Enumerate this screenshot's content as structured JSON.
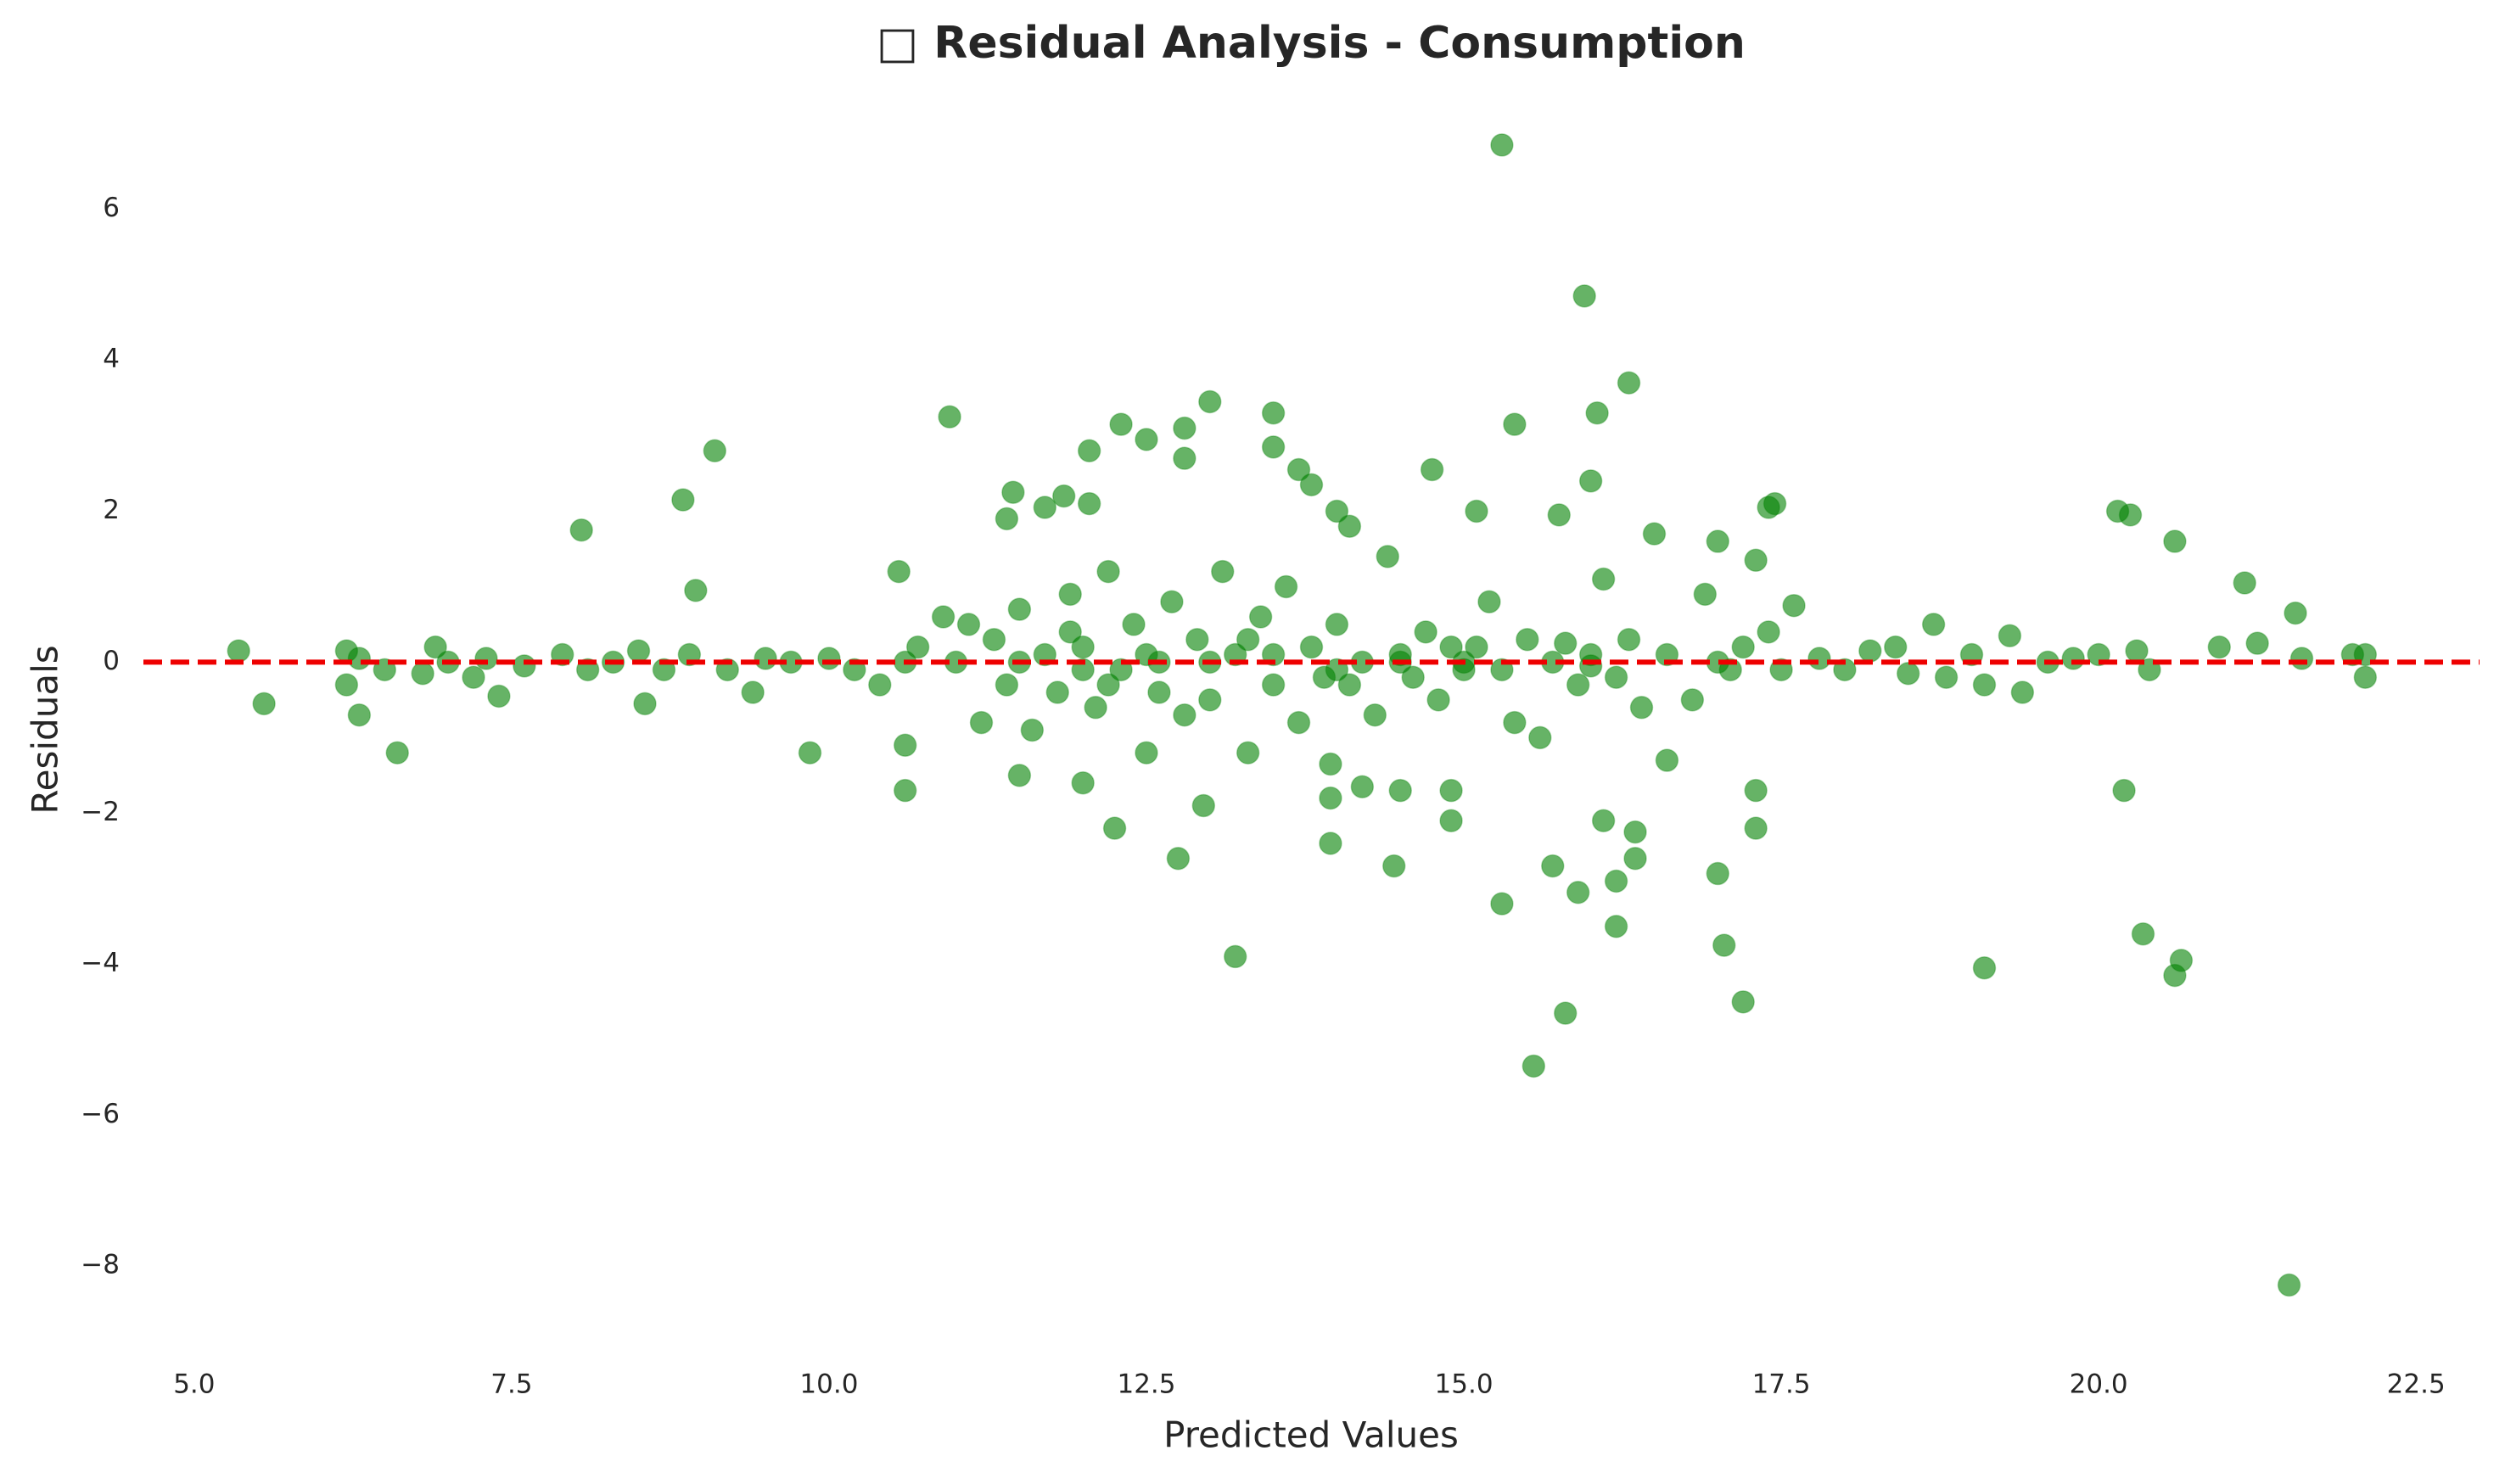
{
  "chart_data": {
    "type": "scatter",
    "title": "□ Residual Analysis - Consumption",
    "x_label": "Predicted Values",
    "y_label": "Residuals",
    "color": "#008000",
    "x": [
      5.35,
      5.55,
      6.2,
      6.2,
      6.3,
      6.6,
      6.9,
      7.4,
      8.05,
      8.55,
      8.85,
      8.95,
      9.1,
      9.4,
      9.85,
      10.6,
      10.6,
      10.55,
      10.95,
      11.4,
      11.45,
      11.5,
      11.7,
      11.85,
      12.0,
      12.05,
      12.05,
      12.25,
      12.3,
      12.5,
      12.75,
      12.8,
      12.8,
      12.95,
      13.0,
      13.2,
      13.5,
      13.5,
      13.7,
      13.8,
      13.95,
      13.95,
      13.95,
      14.0,
      14.1,
      14.2,
      14.45,
      14.5,
      14.75,
      14.9,
      14.9,
      15.1,
      15.3,
      15.3,
      15.4,
      15.55,
      15.7,
      15.8,
      15.75,
      15.9,
      15.95,
      16.0,
      16.05,
      16.1,
      16.2,
      16.2,
      16.3,
      16.35,
      16.35,
      16.6,
      17.0,
      17.05,
      17.2,
      17.3,
      17.3,
      17.4,
      17.45,
      19.1,
      20.15,
      20.25,
      20.2,
      20.35,
      20.6,
      20.6,
      20.65,
      20.95,
      21.15,
      21.25,
      21.5,
      21.55,
      21.6,
      22.0,
      22.1,
      22.1,
      6.3,
      6.5,
      6.8,
      7.0,
      7.2,
      7.3,
      7.6,
      7.9,
      8.1,
      8.3,
      8.5,
      8.7,
      8.9,
      9.2,
      9.5,
      9.7,
      10.0,
      10.2,
      10.4,
      10.7,
      10.9,
      11.1,
      11.2,
      11.3,
      11.4,
      11.5,
      11.6,
      11.7,
      11.8,
      11.9,
      12.0,
      12.1,
      12.2,
      12.3,
      12.4,
      12.5,
      12.6,
      12.7,
      12.8,
      12.9,
      13.0,
      13.1,
      13.2,
      13.3,
      13.4,
      13.5,
      13.6,
      13.7,
      13.8,
      13.9,
      14.0,
      14.1,
      14.2,
      14.3,
      14.4,
      14.5,
      14.6,
      14.7,
      14.8,
      14.9,
      15.0,
      15.1,
      15.2,
      15.3,
      15.4,
      15.5,
      15.6,
      15.7,
      15.8,
      15.9,
      16.0,
      16.1,
      16.2,
      16.3,
      16.4,
      16.5,
      16.6,
      16.8,
      16.9,
      17.0,
      17.1,
      17.2,
      17.3,
      17.4,
      17.5,
      17.6,
      17.8,
      18.0,
      18.2,
      18.4,
      18.5,
      18.7,
      18.8,
      19.0,
      19.1,
      19.3,
      19.4,
      19.6,
      19.8,
      20.0,
      20.3,
      20.4,
      10.6,
      11.0,
      11.5,
      12.0,
      12.5,
      13.0,
      13.5,
      14.0,
      14.5,
      15.0,
      16.0,
      17.0,
      12.2,
      11.9,
      12.6,
      13.3
    ],
    "values": [
      0.15,
      -0.55,
      -0.3,
      0.15,
      -0.7,
      -1.2,
      0.2,
      -0.45,
      1.75,
      -0.55,
      2.15,
      0.95,
      2.8,
      -0.4,
      -1.2,
      -1.7,
      -1.1,
      1.2,
      3.25,
      1.9,
      2.25,
      -1.5,
      2.05,
      2.2,
      -1.6,
      2.8,
      2.1,
      -2.2,
      3.15,
      2.95,
      -2.6,
      3.1,
      2.7,
      -1.9,
      3.45,
      -3.9,
      3.3,
      2.85,
      2.55,
      2.35,
      -1.35,
      -1.8,
      -2.4,
      2.0,
      1.8,
      -1.65,
      -2.7,
      -1.7,
      2.55,
      -2.1,
      -1.7,
      2.0,
      6.85,
      -3.2,
      3.15,
      -5.35,
      -2.7,
      -4.65,
      1.95,
      -3.05,
      4.85,
      2.4,
      3.3,
      -2.1,
      -2.9,
      -3.5,
      3.7,
      -2.25,
      -2.6,
      -1.3,
      -2.8,
      -3.75,
      -4.5,
      -2.2,
      -1.7,
      2.05,
      2.1,
      -4.05,
      2.0,
      1.95,
      -1.7,
      -3.6,
      -4.15,
      1.6,
      -3.95,
      0.2,
      1.05,
      0.25,
      -8.25,
      0.65,
      0.05,
      0.1,
      -0.2,
      0.1,
      0.05,
      -0.1,
      -0.15,
      0.0,
      -0.2,
      0.05,
      -0.05,
      0.1,
      -0.1,
      0.0,
      0.15,
      -0.1,
      0.1,
      -0.1,
      0.05,
      0.0,
      0.05,
      -0.1,
      -0.3,
      0.2,
      0.6,
      0.5,
      -0.8,
      0.3,
      -0.3,
      0.7,
      -0.9,
      0.1,
      -0.4,
      0.9,
      0.2,
      -0.6,
      1.2,
      -0.1,
      0.5,
      -1.2,
      0.0,
      0.8,
      -0.7,
      0.3,
      -0.5,
      1.2,
      0.1,
      -1.2,
      0.6,
      -0.3,
      1.0,
      -0.8,
      0.2,
      -0.2,
      0.5,
      -0.3,
      0.0,
      -0.7,
      1.4,
      0.1,
      -0.2,
      0.4,
      -0.5,
      0.2,
      -0.1,
      0.2,
      0.8,
      -0.1,
      -0.8,
      0.3,
      -1.0,
      0.0,
      0.25,
      -0.3,
      0.1,
      1.1,
      -0.2,
      0.3,
      -0.6,
      1.7,
      0.1,
      -0.5,
      0.9,
      1.6,
      -0.1,
      0.2,
      1.35,
      0.4,
      -0.1,
      0.75,
      0.05,
      -0.1,
      0.15,
      0.2,
      -0.15,
      0.5,
      -0.2,
      0.1,
      -0.3,
      0.35,
      -0.4,
      0.0,
      0.05,
      0.1,
      0.15,
      -0.1,
      0.0,
      0.0,
      0.0,
      -0.1,
      0.1,
      0.0,
      0.1,
      -0.1,
      0.0,
      0.0,
      -0.05,
      0.0,
      -0.3,
      0.4,
      -0.4,
      0.3
    ],
    "xlim": [
      4.6,
      23.0
    ],
    "ylim": [
      -9.2,
      7.4
    ],
    "xticks": [
      {
        "value": 5,
        "label": "5.0"
      },
      7.5,
      {
        "value": 10,
        "label": "10.0"
      },
      12.5,
      {
        "value": 15,
        "label": "15.0"
      },
      17.5,
      {
        "value": 20,
        "label": "20.0"
      },
      22.5
    ],
    "yticks": [
      {
        "value": -8,
        "label": "−8"
      },
      {
        "value": -6,
        "label": "−6"
      },
      {
        "value": -4,
        "label": "−4"
      },
      {
        "value": -2,
        "label": "−2"
      },
      0,
      2,
      4,
      6
    ],
    "grid": false,
    "hline": {
      "y": 0,
      "color": "#ee0000"
    }
  }
}
